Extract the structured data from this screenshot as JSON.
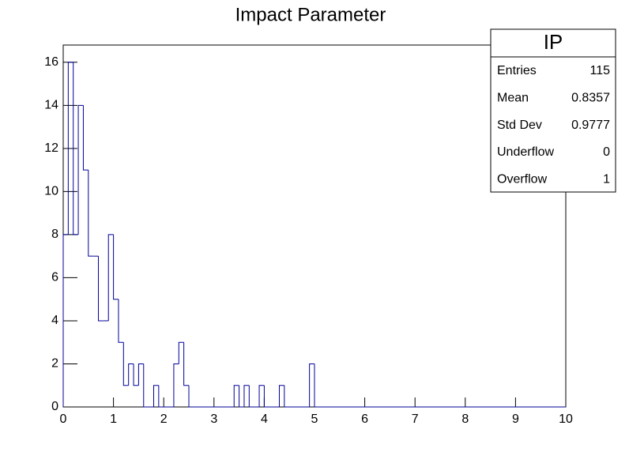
{
  "chart_data": {
    "type": "histogram",
    "title": "Impact Parameter",
    "bins": [
      0,
      0.1,
      0.2,
      0.3,
      0.4,
      0.5,
      0.6,
      0.7,
      0.8,
      0.9,
      1,
      1.1,
      1.2,
      1.3,
      1.4,
      1.5,
      1.6,
      1.7,
      1.8,
      1.9,
      2,
      2.1,
      2.2,
      2.3,
      2.4,
      2.5,
      2.6,
      2.7,
      2.8,
      2.9,
      3,
      3.1,
      3.2,
      3.3,
      3.4,
      3.5,
      3.6,
      3.7,
      3.8,
      3.9,
      4,
      4.1,
      4.2,
      4.3,
      4.4,
      4.5,
      4.6,
      4.7,
      4.8,
      4.9,
      5,
      5.1,
      5.2,
      5.3,
      5.4,
      5.5,
      5.6,
      5.7,
      5.8,
      5.9,
      6,
      6.1,
      6.2,
      6.3,
      6.4,
      6.5,
      6.6,
      6.7,
      6.8,
      6.9,
      7,
      7.1,
      7.2,
      7.3,
      7.4,
      7.5,
      7.6,
      7.7,
      7.8,
      7.9,
      8,
      8.1,
      8.2,
      8.3,
      8.4,
      8.5,
      8.6,
      8.7,
      8.8,
      8.9,
      9,
      9.1,
      9.2,
      9.3,
      9.4,
      9.5,
      9.6,
      9.7,
      9.8,
      9.9,
      10
    ],
    "counts": [
      8,
      16,
      8,
      14,
      11,
      7,
      7,
      4,
      4,
      8,
      5,
      3,
      1,
      2,
      1,
      2,
      0,
      0,
      1,
      0,
      0,
      0,
      2,
      3,
      1,
      0,
      0,
      0,
      0,
      0,
      0,
      0,
      0,
      0,
      1,
      0,
      1,
      0,
      0,
      1,
      0,
      0,
      0,
      1,
      0,
      0,
      0,
      0,
      0,
      2,
      0,
      0,
      0,
      0,
      0,
      0,
      0,
      0,
      0,
      0,
      0,
      0,
      0,
      0,
      0,
      0,
      0,
      0,
      0,
      0,
      0,
      0,
      0,
      0,
      0,
      0,
      0,
      0,
      0,
      0,
      0,
      0,
      0,
      0,
      0,
      0,
      0,
      0,
      0,
      0,
      0,
      0,
      0,
      0,
      0,
      0,
      0,
      0,
      0,
      0
    ],
    "color": "#000099",
    "xlim": [
      0,
      10
    ],
    "xticks": [
      0,
      1,
      2,
      3,
      4,
      5,
      6,
      7,
      8,
      9,
      10
    ],
    "ylim": [
      0,
      16.8
    ],
    "yticks": [
      0,
      2,
      4,
      6,
      8,
      10,
      12,
      14,
      16
    ],
    "stats": {
      "title": "IP",
      "rows": [
        {
          "label": "Entries",
          "value": 115
        },
        {
          "label": "Mean",
          "value": 0.8357
        },
        {
          "label": "Std Dev",
          "value": 0.9777
        },
        {
          "label": "Underflow",
          "value": 0
        },
        {
          "label": "Overflow",
          "value": 1
        }
      ]
    }
  }
}
